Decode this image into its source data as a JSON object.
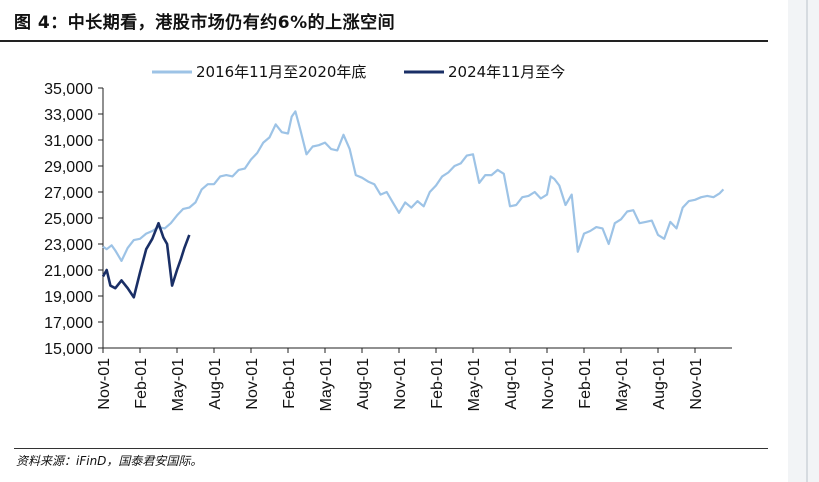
{
  "title": "图 4：中长期看，港股市场仍有约6%的上涨空间",
  "source": "资料来源：iFinD，国泰君安国际。",
  "chart_data": {
    "type": "line",
    "ylim": [
      15000,
      35000
    ],
    "yticks": [
      15000,
      17000,
      19000,
      21000,
      23000,
      25000,
      27000,
      29000,
      31000,
      33000,
      35000
    ],
    "ytick_labels": [
      "15,000",
      "17,000",
      "19,000",
      "21,000",
      "23,000",
      "25,000",
      "27,000",
      "29,000",
      "31,000",
      "33,000",
      "35,000"
    ],
    "xlim": [
      0,
      51
    ],
    "xticks": [
      0,
      3,
      6,
      9,
      12,
      15,
      18,
      21,
      24,
      27,
      30,
      33,
      36,
      39,
      42,
      45,
      48
    ],
    "xtick_labels": [
      "Nov-01",
      "Feb-01",
      "May-01",
      "Aug-01",
      "Nov-01",
      "Feb-01",
      "May-01",
      "Aug-01",
      "Nov-01",
      "Feb-01",
      "May-01",
      "Aug-01",
      "Nov-01",
      "Feb-01",
      "May-01",
      "Aug-01",
      "Nov-01"
    ],
    "legend": "top",
    "series": [
      {
        "name": "2016年11月至2020年底",
        "color": "#9dc3e6",
        "x": [
          0,
          0.3,
          0.7,
          1,
          1.5,
          2,
          2.5,
          3,
          3.5,
          4,
          4.5,
          5,
          5.5,
          6,
          6.5,
          7,
          7.5,
          8,
          8.5,
          9,
          9.5,
          10,
          10.5,
          11,
          11.5,
          12,
          12.5,
          13,
          13.5,
          14,
          14.5,
          15,
          15.3,
          15.6,
          16,
          16.5,
          17,
          17.5,
          18,
          18.5,
          19,
          19.5,
          20,
          20.5,
          21,
          21.5,
          22,
          22.5,
          23,
          23.5,
          24,
          24.5,
          25,
          25.5,
          26,
          26.5,
          27,
          27.5,
          28,
          28.5,
          29,
          29.5,
          30,
          30.5,
          31,
          31.5,
          32,
          32.5,
          33,
          33.5,
          34,
          34.5,
          35,
          35.5,
          36,
          36.3,
          36.6,
          37,
          37.5,
          38,
          38.5,
          39,
          39.5,
          40,
          40.5,
          41,
          41.5,
          42,
          42.5,
          43,
          43.5,
          44,
          44.5,
          45,
          45.5,
          46,
          46.5,
          47,
          47.5,
          48,
          48.5,
          49,
          49.5,
          50,
          50.3
        ],
        "values": [
          22800,
          22600,
          22900,
          22500,
          21700,
          22700,
          23300,
          23400,
          23800,
          24000,
          24300,
          24200,
          24600,
          25200,
          25700,
          25800,
          26200,
          27200,
          27600,
          27600,
          28200,
          28300,
          28200,
          28700,
          28800,
          29500,
          30000,
          30800,
          31200,
          32200,
          31600,
          31500,
          32800,
          33200,
          31800,
          29900,
          30500,
          30600,
          30800,
          30300,
          30200,
          31400,
          30300,
          28300,
          28100,
          27800,
          27600,
          26800,
          27000,
          26200,
          25400,
          26200,
          25800,
          26300,
          25900,
          27000,
          27500,
          28200,
          28500,
          29000,
          29200,
          29800,
          29900,
          27700,
          28300,
          28300,
          28700,
          28400,
          25900,
          26000,
          26600,
          26700,
          27000,
          26500,
          26800,
          28200,
          28000,
          27500,
          26000,
          26800,
          22400,
          23800,
          24000,
          24300,
          24200,
          23000,
          24600,
          24900,
          25500,
          25600,
          24600,
          24700,
          24800,
          23700,
          23400,
          24700,
          24200,
          25800,
          26300,
          26400,
          26600,
          26700,
          26600,
          26900,
          27200
        ]
      },
      {
        "name": "2024年11月至今",
        "color": "#1a2f66",
        "x": [
          0,
          0.3,
          0.6,
          1,
          1.5,
          2,
          2.5,
          3,
          3.5,
          4,
          4.5,
          4.9,
          5.2,
          5.6,
          6,
          6.3,
          6.6,
          7
        ],
        "values": [
          20500,
          21000,
          19800,
          19600,
          20200,
          19600,
          18900,
          20800,
          22600,
          23400,
          24600,
          23500,
          23000,
          19800,
          21000,
          21800,
          22700,
          23700
        ]
      }
    ]
  }
}
